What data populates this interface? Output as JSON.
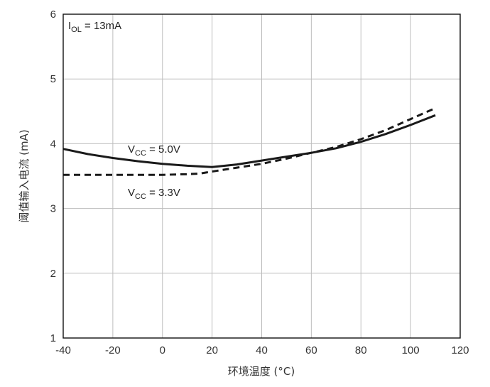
{
  "chart_data": {
    "type": "line",
    "xlabel": "环境温度 (°C)",
    "ylabel": "阈值输入电流 (mA)",
    "xlim": [
      -40,
      120
    ],
    "ylim": [
      1,
      6
    ],
    "x_ticks": [
      -40,
      -20,
      0,
      20,
      40,
      60,
      80,
      100,
      120
    ],
    "y_ticks": [
      1,
      2,
      3,
      4,
      5,
      6
    ],
    "grid": true,
    "legend": "none",
    "annotations": [
      {
        "main": "I",
        "sub": "OL",
        "rest": " = 13mA"
      },
      {
        "main": "V",
        "sub": "CC",
        "rest": " = 5.0V"
      },
      {
        "main": "V",
        "sub": "CC",
        "rest": " = 3.3V"
      }
    ],
    "series": [
      {
        "style": "solid",
        "x": [
          -40,
          -30,
          -20,
          -10,
          0,
          10,
          20,
          30,
          40,
          50,
          60,
          70,
          80,
          90,
          100,
          110
        ],
        "y": [
          3.92,
          3.84,
          3.78,
          3.73,
          3.69,
          3.66,
          3.64,
          3.68,
          3.74,
          3.8,
          3.86,
          3.93,
          4.03,
          4.15,
          4.29,
          4.44
        ]
      },
      {
        "style": "dashed",
        "x": [
          -40,
          -20,
          0,
          10,
          15,
          20,
          30,
          40,
          50,
          60,
          70,
          80,
          90,
          100,
          110
        ],
        "y": [
          3.52,
          3.52,
          3.52,
          3.53,
          3.54,
          3.57,
          3.63,
          3.69,
          3.77,
          3.86,
          3.95,
          4.07,
          4.21,
          4.38,
          4.55
        ]
      }
    ]
  }
}
